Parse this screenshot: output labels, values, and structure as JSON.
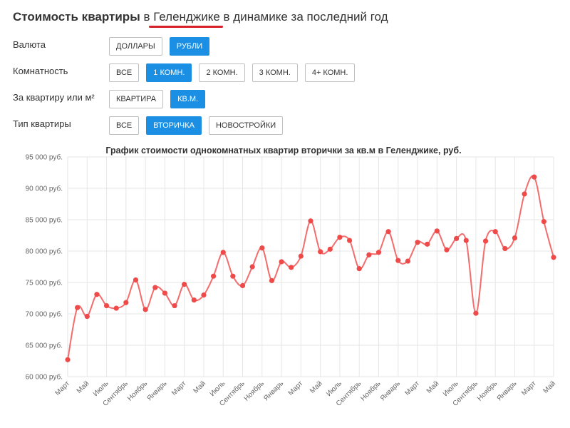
{
  "header": {
    "title_bold": "Стоимость квартиры",
    "title_in": "в",
    "city": "Геленджике",
    "title_rest": "в динамике за последний год"
  },
  "filters": [
    {
      "label": "Валюта",
      "buttons": [
        {
          "label": "ДОЛЛАРЫ",
          "active": false
        },
        {
          "label": "РУБЛИ",
          "active": true
        }
      ]
    },
    {
      "label": "Комнатность",
      "buttons": [
        {
          "label": "ВСЕ",
          "active": false
        },
        {
          "label": "1 КОМН.",
          "active": true
        },
        {
          "label": "2 КОМН.",
          "active": false
        },
        {
          "label": "3 КОМН.",
          "active": false
        },
        {
          "label": "4+ КОМН.",
          "active": false
        }
      ]
    },
    {
      "label": "За квартиру или м²",
      "buttons": [
        {
          "label": "КВАРТИРА",
          "active": false
        },
        {
          "label": "КВ.М.",
          "active": true
        }
      ]
    },
    {
      "label": "Тип квартиры",
      "buttons": [
        {
          "label": "ВСЕ",
          "active": false
        },
        {
          "label": "ВТОРИЧКА",
          "active": true
        },
        {
          "label": "НОВОСТРОЙКИ",
          "active": false
        }
      ]
    }
  ],
  "chart_data": {
    "type": "line",
    "title": "График стоимости однокомнатных квартир вторички за кв.м в Геленджике, руб.",
    "xlabel": "",
    "ylabel": "",
    "ylim": [
      60000,
      95000
    ],
    "yticks": [
      60000,
      65000,
      70000,
      75000,
      80000,
      85000,
      90000,
      95000
    ],
    "ytick_labels": [
      "60 000 руб.",
      "65 000 руб.",
      "70 000 руб.",
      "75 000 руб.",
      "80 000 руб.",
      "85 000 руб.",
      "90 000 руб.",
      "95 000 руб."
    ],
    "x_labels": [
      "Март",
      "Май",
      "Июль",
      "Сентябрь",
      "Ноябрь",
      "Январь",
      "Март",
      "Май",
      "Июль",
      "Сентябрь",
      "Ноябрь",
      "Январь",
      "Март",
      "Май",
      "Июль",
      "Сентябрь",
      "Ноябрь",
      "Январь",
      "Март",
      "Май",
      "Июль",
      "Сентябрь",
      "Ноябрь",
      "Январь",
      "Март",
      "Май"
    ],
    "grid": true,
    "legend": "none",
    "color": "#f26d6d",
    "values": [
      62700,
      71000,
      69600,
      73100,
      71300,
      70900,
      71800,
      75400,
      70700,
      74200,
      73300,
      71300,
      74700,
      72200,
      73000,
      76000,
      79800,
      76000,
      74500,
      77500,
      80500,
      75300,
      78300,
      77400,
      79200,
      84800,
      79900,
      80300,
      82200,
      81700,
      77200,
      79400,
      79800,
      83100,
      78500,
      78400,
      81400,
      81100,
      83200,
      80200,
      82000,
      81700,
      70100,
      81600,
      83100,
      80400,
      82100,
      89100,
      91800,
      84700,
      79000
    ]
  }
}
